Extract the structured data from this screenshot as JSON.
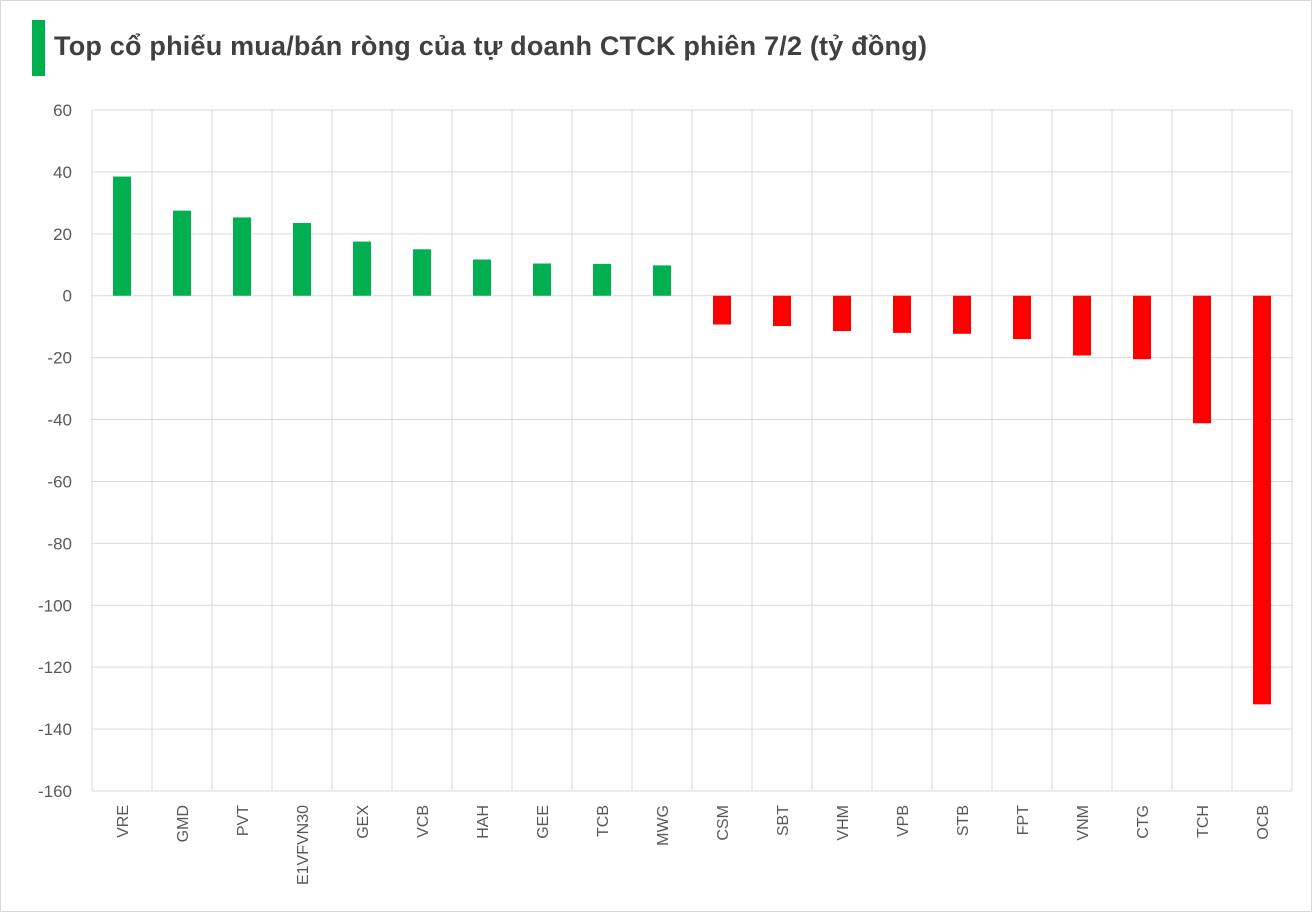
{
  "title": "Top cổ phiếu mua/bán ròng của tự doanh CTCK phiên 7/2 (tỷ đồng)",
  "colors": {
    "positive": "#00b050",
    "negative": "#ff0000",
    "grid": "#d9d9d9",
    "text": "#595959",
    "accent": "#00b050"
  },
  "chart_data": {
    "type": "bar",
    "title": "Top cổ phiếu mua/bán ròng của tự doanh CTCK phiên 7/2 (tỷ đồng)",
    "categories": [
      "VRE",
      "GMD",
      "PVT",
      "E1VFVN30",
      "GEX",
      "VCB",
      "HAH",
      "GEE",
      "TCB",
      "MWG",
      "CSM",
      "SBT",
      "VHM",
      "VPB",
      "STB",
      "FPT",
      "VNM",
      "CTG",
      "TCH",
      "OCB"
    ],
    "values": [
      38.5,
      27.5,
      25.3,
      23.5,
      17.5,
      15.0,
      11.7,
      10.4,
      10.3,
      9.8,
      -9.3,
      -9.8,
      -11.4,
      -12.0,
      -12.3,
      -14.0,
      -19.3,
      -20.5,
      -41.2,
      -132.0
    ],
    "ylim": [
      -160,
      60
    ],
    "yticks": [
      60,
      40,
      20,
      0,
      -20,
      -40,
      -60,
      -80,
      -100,
      -120,
      -140,
      -160
    ],
    "xlabel": "",
    "ylabel": "",
    "grid": true,
    "legend": "none"
  }
}
